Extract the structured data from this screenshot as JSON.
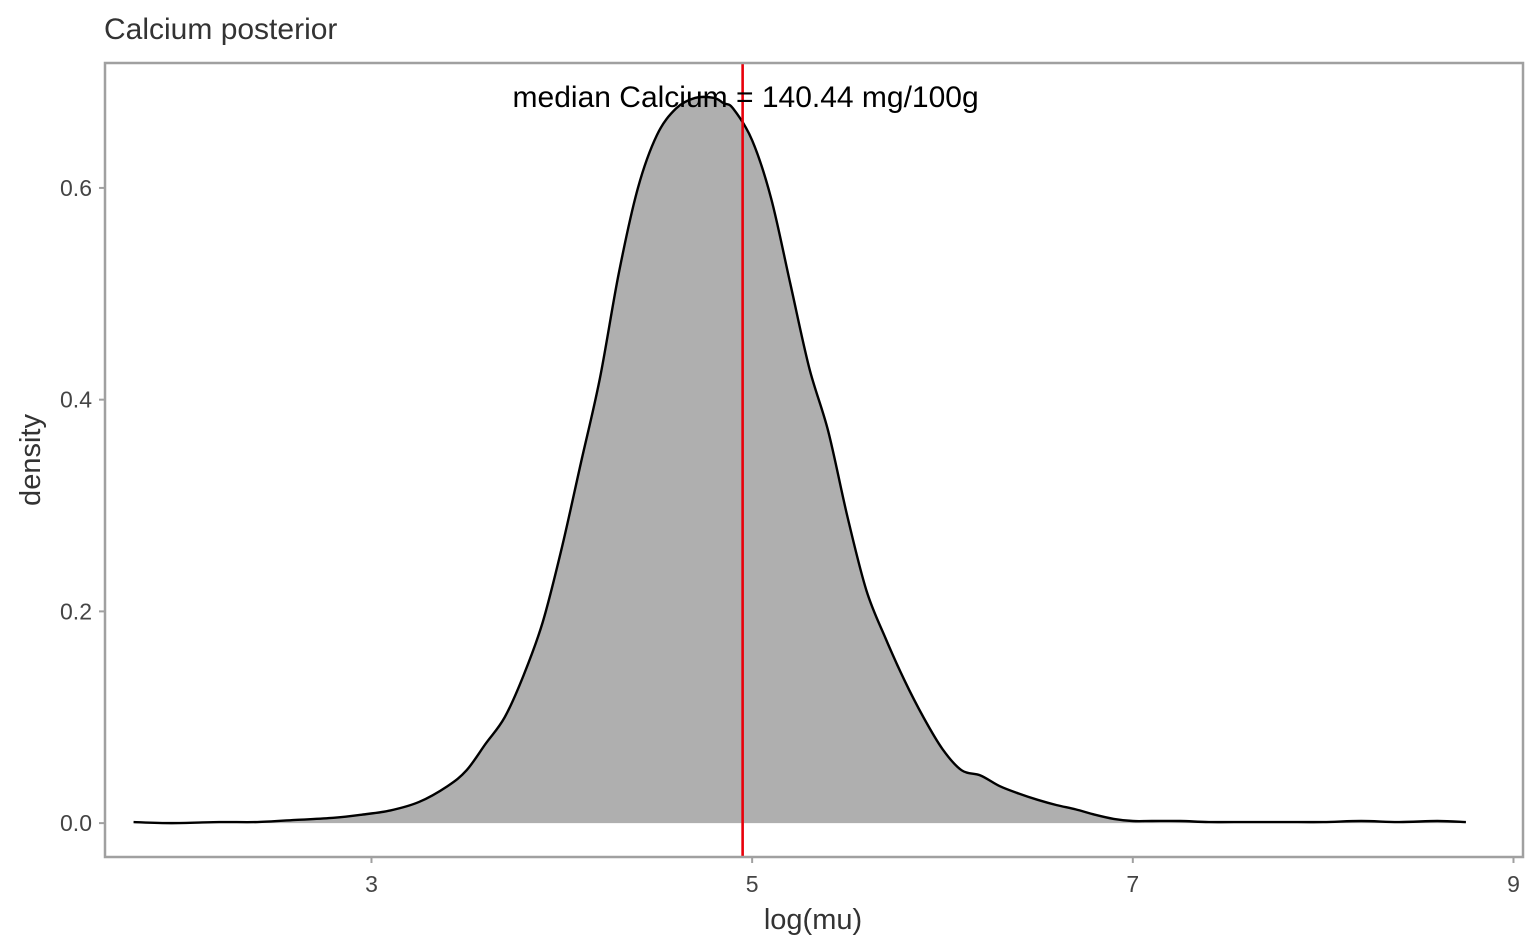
{
  "chart_data": {
    "type": "area",
    "title": "Calcium posterior",
    "xlabel": "log(mu)",
    "ylabel": "density",
    "xlim": [
      1.6,
      9.05
    ],
    "ylim": [
      -0.032,
      0.718
    ],
    "x_ticks": [
      3,
      5,
      7,
      9
    ],
    "x_tick_labels": [
      "3",
      "5",
      "7",
      "9"
    ],
    "y_ticks": [
      0.0,
      0.2,
      0.4,
      0.6
    ],
    "y_tick_labels": [
      "0.0",
      "0.2",
      "0.4",
      "0.6"
    ],
    "grid": false,
    "annotation": {
      "text": "median Calcium = 140.44 mg/100g",
      "x": 4.95,
      "y": 0.685
    },
    "median_line": {
      "x": 4.95,
      "color": "#e8000b"
    },
    "fill_color": "#afafaf",
    "line_color": "#000000",
    "series": [
      {
        "x": [
          1.75,
          1.95,
          2.2,
          2.4,
          2.6,
          2.8,
          2.95,
          3.1,
          3.25,
          3.4,
          3.5,
          3.6,
          3.7,
          3.8,
          3.9,
          4.0,
          4.1,
          4.2,
          4.3,
          4.4,
          4.5,
          4.6,
          4.7,
          4.8,
          4.85,
          4.9,
          5.0,
          5.1,
          5.2,
          5.3,
          5.4,
          5.5,
          5.6,
          5.7,
          5.8,
          5.9,
          6.0,
          6.1,
          6.2,
          6.3,
          6.4,
          6.5,
          6.6,
          6.7,
          6.8,
          6.9,
          7.0,
          7.1,
          7.25,
          7.4,
          7.6,
          7.8,
          8.0,
          8.2,
          8.4,
          8.6,
          8.75
        ],
        "y": [
          0.001,
          0.0,
          0.001,
          0.001,
          0.003,
          0.005,
          0.008,
          0.012,
          0.02,
          0.035,
          0.05,
          0.075,
          0.1,
          0.14,
          0.19,
          0.26,
          0.34,
          0.42,
          0.52,
          0.6,
          0.65,
          0.675,
          0.685,
          0.685,
          0.68,
          0.675,
          0.645,
          0.59,
          0.51,
          0.43,
          0.37,
          0.29,
          0.22,
          0.175,
          0.135,
          0.1,
          0.07,
          0.05,
          0.045,
          0.035,
          0.028,
          0.022,
          0.017,
          0.013,
          0.008,
          0.004,
          0.002,
          0.002,
          0.002,
          0.001,
          0.001,
          0.001,
          0.001,
          0.002,
          0.001,
          0.002,
          0.001
        ]
      }
    ]
  }
}
